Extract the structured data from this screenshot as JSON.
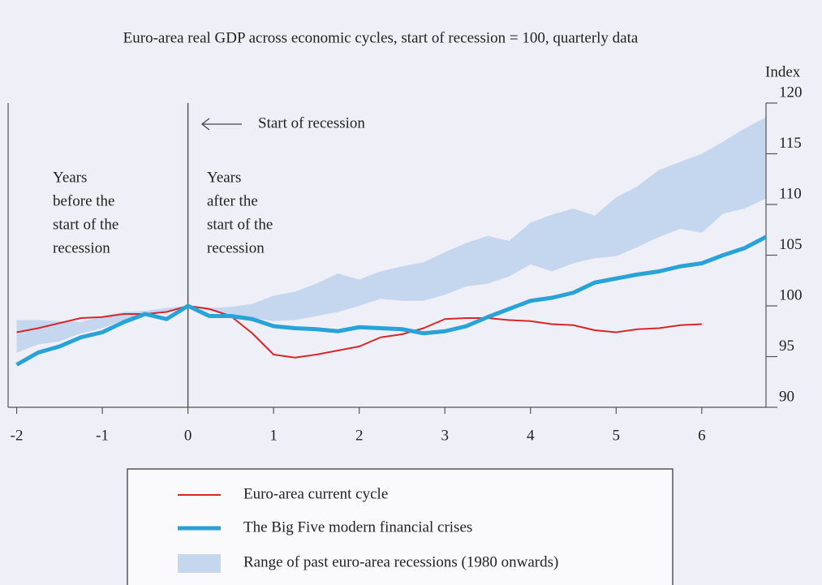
{
  "chart_data": {
    "type": "line",
    "title": "Euro-area real GDP across economic cycles, start of recession = 100, quarterly data",
    "y_axis_label": "Index",
    "annotations": [
      {
        "lines": [
          "Years",
          "before the",
          "start of the",
          "recession"
        ]
      },
      {
        "lines": [
          "Years",
          "after the",
          "start of the",
          "recession"
        ]
      },
      {
        "lines": [
          "Start of recession"
        ]
      }
    ],
    "x": [
      -2,
      -1.75,
      -1.5,
      -1.25,
      -1,
      -0.75,
      -0.5,
      -0.25,
      0,
      0.25,
      0.5,
      0.75,
      1,
      1.25,
      1.5,
      1.75,
      2,
      2.25,
      2.5,
      2.75,
      3,
      3.25,
      3.5,
      3.75,
      4,
      4.25,
      4.5,
      4.75,
      5,
      5.25,
      5.5,
      5.75,
      6,
      6.25,
      6.5,
      6.75
    ],
    "series": [
      {
        "name": "Euro-area current cycle",
        "color": "#d9262b",
        "values": [
          97.4,
          97.8,
          98.3,
          98.8,
          98.9,
          99.2,
          99.2,
          99.4,
          100,
          99.7,
          99.0,
          97.3,
          95.2,
          94.9,
          95.2,
          95.6,
          96.0,
          96.9,
          97.2,
          97.8,
          98.7,
          98.8,
          98.8,
          98.6,
          98.5,
          98.2,
          98.1,
          97.6,
          97.4,
          97.7,
          97.8,
          98.1,
          98.2,
          null,
          null,
          null
        ]
      },
      {
        "name": "The Big Five modern financial crises",
        "color": "#27a3d8",
        "values": [
          94.2,
          95.4,
          96.0,
          96.9,
          97.4,
          98.4,
          99.2,
          98.7,
          100,
          99.0,
          99.0,
          98.7,
          98.0,
          97.8,
          97.7,
          97.5,
          97.9,
          97.8,
          97.7,
          97.3,
          97.5,
          98.0,
          98.9,
          99.7,
          100.5,
          100.8,
          101.3,
          102.3,
          102.7,
          103.1,
          103.4,
          103.9,
          104.2,
          105.0,
          105.7,
          106.8
        ]
      },
      {
        "name": "Range of past euro-area recessions (1980 onwards)",
        "color": "#c4d7ee",
        "high": [
          98.6,
          98.6,
          98.5,
          98.4,
          99.0,
          99.4,
          99.5,
          99.8,
          100,
          99.8,
          99.9,
          100.2,
          101.0,
          101.4,
          102.2,
          103.2,
          102.6,
          103.4,
          103.9,
          104.3,
          105.3,
          106.2,
          106.9,
          106.4,
          108.2,
          109.0,
          109.6,
          108.9,
          110.7,
          111.8,
          113.4,
          114.2,
          115.0,
          116.2,
          117.5,
          118.6
        ],
        "low": [
          95.4,
          96.2,
          96.5,
          97.3,
          97.8,
          98.6,
          99.0,
          99.4,
          100,
          99.5,
          99.0,
          98.8,
          98.5,
          98.6,
          99.0,
          99.4,
          100.0,
          100.7,
          100.5,
          100.5,
          101.1,
          101.9,
          102.2,
          102.9,
          104.1,
          103.4,
          104.2,
          104.7,
          104.9,
          105.8,
          106.8,
          107.6,
          107.2,
          109.1,
          109.6,
          110.6
        ]
      }
    ],
    "xlim": [
      -2.1,
      6.75
    ],
    "xticks": [
      -2,
      -1,
      0,
      1,
      2,
      3,
      4,
      5,
      6
    ],
    "ylim": [
      90,
      120
    ],
    "yticks": [
      90,
      95,
      100,
      105,
      110,
      115,
      120
    ],
    "y_axis_side": "right"
  }
}
